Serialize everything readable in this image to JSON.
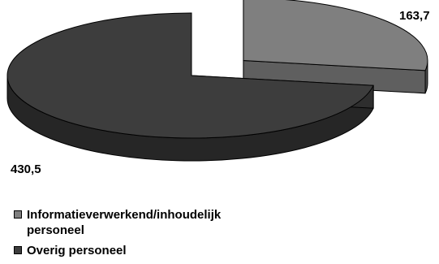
{
  "chart_data": {
    "type": "pie",
    "title": "",
    "slices": [
      {
        "label": "Informatieverwerkend/inhoudelijk\npersoneel",
        "value": 163.7,
        "value_label": "163,7",
        "color": "#7f7f7f"
      },
      {
        "label": "Overig personeel",
        "value": 430.5,
        "value_label": "430,5",
        "color": "#3d3d3d"
      }
    ],
    "style": "3d-exploded",
    "legend_position": "bottom-left"
  }
}
